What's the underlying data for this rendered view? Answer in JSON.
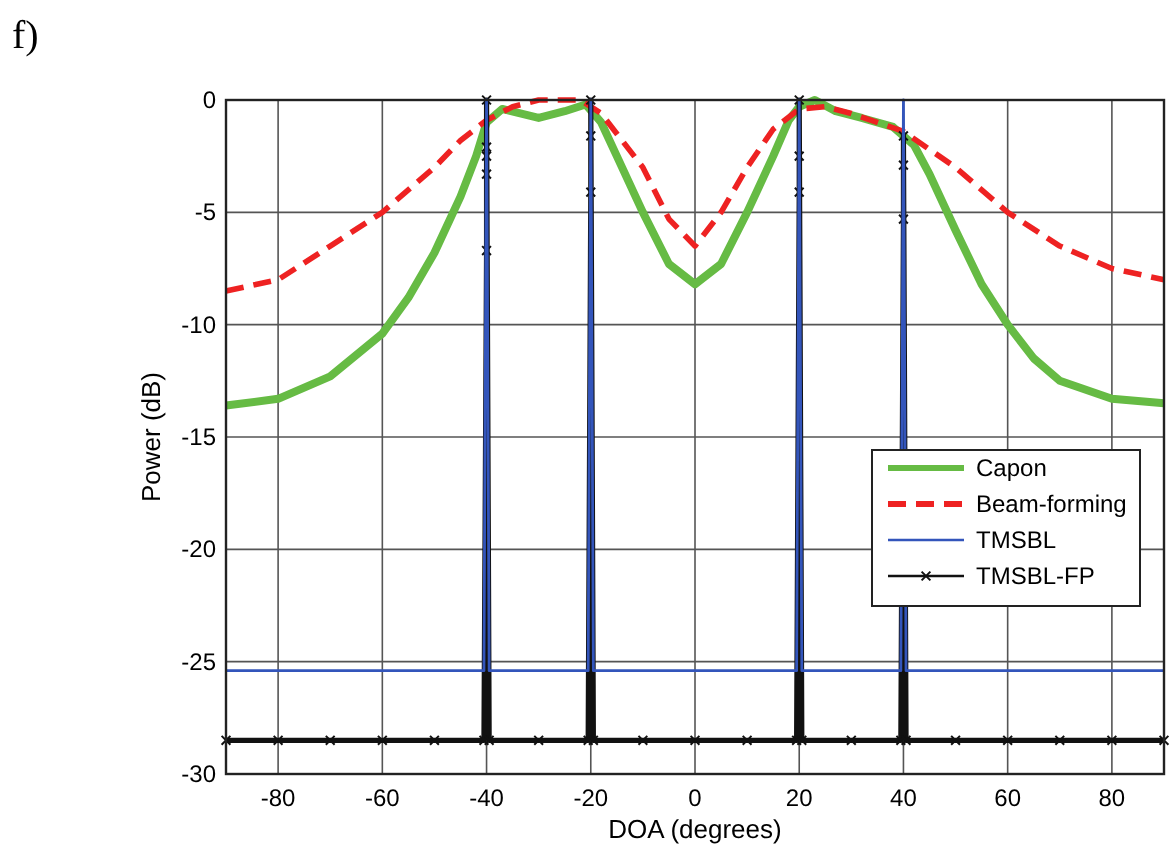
{
  "chart_data": {
    "type": "line",
    "title": "f)",
    "xlabel": "DOA (degrees)",
    "ylabel": "Power (dB)",
    "xlim": [
      -90,
      90
    ],
    "xticks": [
      -80,
      -60,
      -40,
      -20,
      0,
      20,
      40,
      60,
      80
    ],
    "ylim": [
      -30,
      0
    ],
    "yticks": [
      -30,
      -25,
      -20,
      -15,
      -10,
      -5,
      0
    ],
    "grid": true,
    "legend": "right",
    "series": [
      {
        "name": "Capon",
        "color": "#66bb44",
        "line_style": "solid",
        "marker": "none",
        "x": [
          -90,
          -80,
          -70,
          -60,
          -55,
          -50,
          -45,
          -42,
          -40,
          -37,
          -30,
          -25,
          -21,
          -18,
          -15,
          -10,
          -5,
          0,
          5,
          10,
          15,
          18,
          20,
          23,
          27,
          32,
          38,
          42,
          45,
          50,
          55,
          60,
          65,
          70,
          80,
          90
        ],
        "values": [
          -13.6,
          -13.3,
          -12.3,
          -10.4,
          -8.8,
          -6.8,
          -4.3,
          -2.5,
          -1,
          -0.4,
          -0.8,
          -0.5,
          -0.2,
          -1,
          -2.5,
          -5,
          -7.3,
          -8.2,
          -7.3,
          -5,
          -2.5,
          -0.9,
          -0.3,
          0,
          -0.5,
          -0.8,
          -1.2,
          -2,
          -3.3,
          -5.8,
          -8.2,
          -10,
          -11.5,
          -12.5,
          -13.3,
          -13.5
        ]
      },
      {
        "name": "Beam-forming",
        "color": "#ee2222",
        "line_style": "dashed",
        "marker": "none",
        "x": [
          -90,
          -80,
          -70,
          -60,
          -50,
          -45,
          -40,
          -35,
          -30,
          -22,
          -18,
          -15,
          -10,
          -5,
          0,
          5,
          10,
          15,
          20,
          25,
          30,
          40,
          50,
          60,
          70,
          80,
          90
        ],
        "values": [
          -8.5,
          -8,
          -6.5,
          -5,
          -3,
          -1.8,
          -0.9,
          -0.3,
          0,
          0,
          -0.6,
          -1.5,
          -3,
          -5.3,
          -6.5,
          -5,
          -3,
          -1.3,
          -0.4,
          -0.3,
          -0.6,
          -1.4,
          -3,
          -5,
          -6.5,
          -7.5,
          -8
        ]
      },
      {
        "name": "TMSBL",
        "color": "#3355bb",
        "line_style": "solid",
        "marker": "none",
        "x": [
          -90,
          -40.5,
          -40,
          -39.5,
          -20.5,
          -20,
          -19.5,
          19.5,
          20,
          20.5,
          39.5,
          40,
          40.5,
          90
        ],
        "values": [
          -25.4,
          -25.4,
          0,
          -25.4,
          -25.4,
          0,
          -25.4,
          -25.4,
          0,
          -25.4,
          -25.4,
          0,
          -25.4,
          -25.4
        ]
      },
      {
        "name": "TMSBL-FP",
        "color": "#111111",
        "line_style": "solid",
        "marker": "cross",
        "x": [
          -90,
          -80,
          -70,
          -60,
          -50,
          -40.5,
          -40,
          -40,
          -40,
          -40,
          -40,
          -39.5,
          -30,
          -20.5,
          -20,
          -20,
          -20,
          -19.5,
          -10,
          0,
          10,
          19.5,
          20,
          20,
          20,
          20.5,
          30,
          39.5,
          40,
          40,
          40,
          40.5,
          50,
          60,
          70,
          80,
          90
        ],
        "values": [
          -28.5,
          -28.5,
          -28.5,
          -28.5,
          -28.5,
          -28.5,
          -6.7,
          -3.3,
          -2.5,
          -2.1,
          0,
          -28.5,
          -28.5,
          -28.5,
          -4.1,
          -1.6,
          0,
          -28.5,
          -28.5,
          -28.5,
          -28.5,
          -28.5,
          -4.1,
          -2.5,
          0,
          -28.5,
          -28.5,
          -28.5,
          -5.3,
          -2.9,
          -1.6,
          -28.5,
          -28.5,
          -28.5,
          -28.5,
          -28.5,
          -28.5
        ]
      }
    ]
  }
}
